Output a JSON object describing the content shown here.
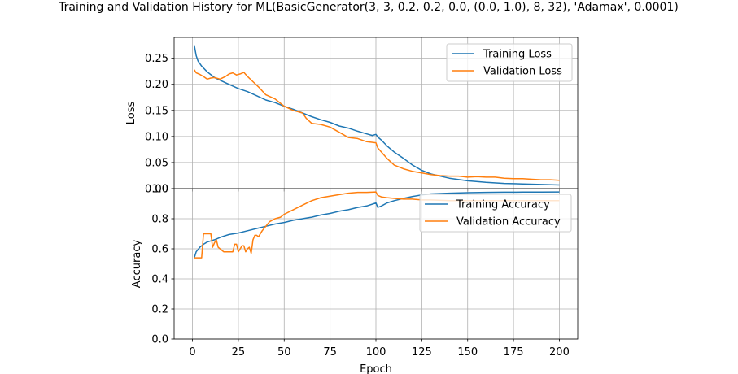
{
  "title": "Training and Validation History for ML(BasicGenerator(3, 3, 0.2, 0.2, 0.0, (0.0, 1.0), 8, 32), 'Adamax', 0.0001)",
  "colors": {
    "training": "#1f77b4",
    "validation": "#ff7f0e",
    "grid": "#b0b0b0"
  },
  "chart_data": [
    {
      "type": "line",
      "ylabel": "Loss",
      "xlabel": "",
      "xlim": [
        -10,
        210
      ],
      "ylim": [
        0,
        0.29
      ],
      "xticks": [
        0,
        25,
        50,
        75,
        100,
        125,
        150,
        175,
        200
      ],
      "yticks": [
        0.0,
        0.05,
        0.1,
        0.15,
        0.2,
        0.25
      ],
      "ytick_labels": [
        "0.00",
        "0.05",
        "0.10",
        "0.15",
        "0.20",
        "0.25"
      ],
      "grid": true,
      "legend": "top-right",
      "series": [
        {
          "name": "Training Loss",
          "color": "#1f77b4",
          "x": [
            1,
            2,
            3,
            5,
            8,
            12,
            18,
            25,
            30,
            35,
            40,
            45,
            50,
            55,
            60,
            65,
            70,
            75,
            80,
            85,
            90,
            95,
            98,
            100,
            101,
            103,
            106,
            110,
            115,
            120,
            125,
            130,
            140,
            150,
            160,
            170,
            180,
            190,
            200
          ],
          "y": [
            0.275,
            0.255,
            0.245,
            0.235,
            0.224,
            0.213,
            0.203,
            0.192,
            0.186,
            0.178,
            0.17,
            0.165,
            0.158,
            0.152,
            0.145,
            0.138,
            0.132,
            0.127,
            0.12,
            0.116,
            0.11,
            0.105,
            0.102,
            0.104,
            0.099,
            0.093,
            0.082,
            0.07,
            0.058,
            0.045,
            0.035,
            0.028,
            0.02,
            0.015,
            0.012,
            0.01,
            0.009,
            0.008,
            0.007
          ]
        },
        {
          "name": "Validation Loss",
          "color": "#ff7f0e",
          "x": [
            1,
            2,
            4,
            6,
            8,
            10,
            12,
            15,
            18,
            20,
            22,
            24,
            26,
            28,
            30,
            33,
            36,
            40,
            45,
            50,
            55,
            60,
            62,
            65,
            70,
            75,
            80,
            85,
            90,
            95,
            100,
            101,
            103,
            106,
            110,
            115,
            120,
            125,
            130,
            135,
            140,
            145,
            150,
            155,
            160,
            165,
            170,
            175,
            180,
            185,
            190,
            195,
            200
          ],
          "y": [
            0.228,
            0.222,
            0.219,
            0.215,
            0.21,
            0.212,
            0.213,
            0.21,
            0.215,
            0.22,
            0.222,
            0.218,
            0.22,
            0.223,
            0.215,
            0.205,
            0.195,
            0.18,
            0.172,
            0.158,
            0.15,
            0.145,
            0.135,
            0.125,
            0.123,
            0.118,
            0.108,
            0.098,
            0.096,
            0.09,
            0.088,
            0.078,
            0.07,
            0.058,
            0.045,
            0.038,
            0.033,
            0.03,
            0.027,
            0.025,
            0.024,
            0.024,
            0.022,
            0.023,
            0.022,
            0.022,
            0.02,
            0.019,
            0.019,
            0.018,
            0.017,
            0.017,
            0.016
          ]
        }
      ]
    },
    {
      "type": "line",
      "ylabel": "Accuracy",
      "xlabel": "Epoch",
      "xlim": [
        -10,
        210
      ],
      "ylim": [
        0,
        1.0
      ],
      "xticks": [
        0,
        25,
        50,
        75,
        100,
        125,
        150,
        175,
        200
      ],
      "xtick_labels": [
        "0",
        "25",
        "50",
        "75",
        "100",
        "125",
        "150",
        "175",
        "200"
      ],
      "yticks": [
        0.0,
        0.2,
        0.4,
        0.6,
        0.8,
        1.0
      ],
      "ytick_labels": [
        "0.0",
        "0.2",
        "0.4",
        "0.6",
        "0.8",
        "1.0"
      ],
      "grid": true,
      "legend": "top-right",
      "series": [
        {
          "name": "Training Accuracy",
          "color": "#1f77b4",
          "x": [
            1,
            2,
            4,
            6,
            8,
            12,
            16,
            20,
            25,
            30,
            35,
            40,
            45,
            50,
            55,
            60,
            65,
            70,
            75,
            80,
            85,
            90,
            95,
            100,
            101,
            103,
            106,
            110,
            115,
            120,
            125,
            130,
            140,
            150,
            160,
            170,
            180,
            190,
            200
          ],
          "y": [
            0.54,
            0.58,
            0.61,
            0.63,
            0.645,
            0.66,
            0.68,
            0.695,
            0.705,
            0.72,
            0.735,
            0.75,
            0.765,
            0.775,
            0.79,
            0.8,
            0.81,
            0.825,
            0.835,
            0.85,
            0.86,
            0.875,
            0.885,
            0.905,
            0.875,
            0.885,
            0.905,
            0.92,
            0.935,
            0.948,
            0.958,
            0.965,
            0.97,
            0.973,
            0.975,
            0.976,
            0.977,
            0.977,
            0.978
          ]
        },
        {
          "name": "Validation Accuracy",
          "color": "#ff7f0e",
          "x": [
            1,
            2,
            3,
            4,
            5,
            6,
            7,
            8,
            9,
            10,
            11,
            12,
            13,
            14,
            15,
            17,
            20,
            22,
            23,
            24,
            25,
            26,
            27,
            28,
            29,
            30,
            31,
            32,
            33,
            34,
            35,
            36,
            38,
            40,
            42,
            45,
            48,
            50,
            55,
            60,
            65,
            70,
            75,
            80,
            85,
            90,
            95,
            100,
            101,
            103,
            106,
            110,
            115,
            120,
            125,
            130,
            140,
            150,
            160,
            170,
            180,
            190,
            200
          ],
          "y": [
            0.54,
            0.54,
            0.54,
            0.54,
            0.54,
            0.7,
            0.7,
            0.7,
            0.7,
            0.7,
            0.61,
            0.64,
            0.66,
            0.61,
            0.6,
            0.58,
            0.58,
            0.58,
            0.63,
            0.63,
            0.58,
            0.6,
            0.62,
            0.62,
            0.58,
            0.6,
            0.61,
            0.57,
            0.66,
            0.69,
            0.69,
            0.68,
            0.72,
            0.75,
            0.78,
            0.8,
            0.81,
            0.83,
            0.86,
            0.89,
            0.92,
            0.94,
            0.95,
            0.96,
            0.97,
            0.975,
            0.975,
            0.978,
            0.955,
            0.945,
            0.94,
            0.935,
            0.93,
            0.93,
            0.925,
            0.925,
            0.92,
            0.92,
            0.92,
            0.92,
            0.92,
            0.92,
            0.92
          ]
        }
      ]
    }
  ]
}
